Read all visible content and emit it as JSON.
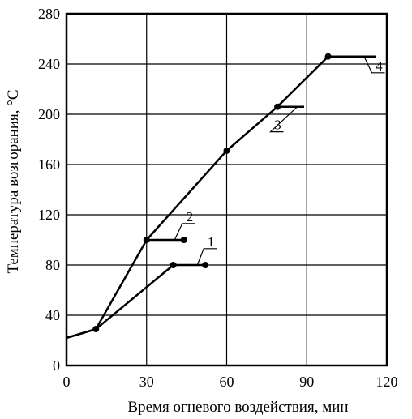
{
  "chart_data": {
    "type": "line",
    "xlabel": "Время огневого воздействия, мин",
    "ylabel": "Температура возгорания, °С",
    "xlim": [
      0,
      120
    ],
    "ylim": [
      0,
      280
    ],
    "x_ticks": [
      "0",
      "30",
      "60",
      "90",
      "120"
    ],
    "y_ticks": [
      "0",
      "40",
      "80",
      "120",
      "160",
      "200",
      "240",
      "280"
    ],
    "grid": true,
    "series": [
      {
        "name": "1",
        "points": [
          [
            0,
            22
          ],
          [
            11,
            29
          ],
          [
            40,
            80
          ],
          [
            52,
            80
          ]
        ],
        "markers": [
          [
            11,
            29
          ],
          [
            40,
            80
          ],
          [
            52,
            80
          ]
        ],
        "label_at": [
          52,
          95
        ]
      },
      {
        "name": "2",
        "points": [
          [
            0,
            22
          ],
          [
            11,
            29
          ],
          [
            30,
            100
          ],
          [
            44,
            100
          ]
        ],
        "markers": [
          [
            30,
            100
          ],
          [
            44,
            100
          ]
        ],
        "label_at": [
          44,
          115
        ]
      },
      {
        "name": "3",
        "points": [
          [
            30,
            100
          ],
          [
            60,
            171
          ],
          [
            79,
            206
          ],
          [
            89,
            206
          ]
        ],
        "markers": [
          [
            60,
            171
          ],
          [
            79,
            206
          ]
        ],
        "label_at": [
          77,
          188
        ]
      },
      {
        "name": "4",
        "points": [
          [
            79,
            206
          ],
          [
            98,
            246
          ],
          [
            116,
            246
          ]
        ],
        "markers": [
          [
            98,
            246
          ]
        ],
        "label_at": [
          115,
          235
        ]
      }
    ]
  }
}
